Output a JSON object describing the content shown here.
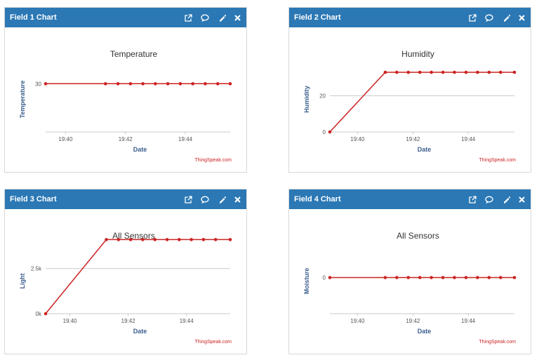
{
  "colors": {
    "header": "#2b78b5",
    "series": "#cc2222",
    "axis_label": "#3a5e8c",
    "credit": "#cc2222",
    "grid": "#cccccc"
  },
  "header_icons": [
    "external-link-icon",
    "comment-icon",
    "pencil-icon",
    "close-icon"
  ],
  "panels": [
    {
      "header_title": "Field 1 Chart",
      "chart_data": {
        "type": "line",
        "title": "Temperature",
        "xlabel": "Date",
        "ylabel": "Temperature",
        "credit": "ThingSpeak.com",
        "x_ticks": [
          "19:40",
          "19:42",
          "19:44"
        ],
        "y_ticks": [
          {
            "value": 30,
            "label": "30"
          }
        ],
        "xlim": [
          "19:39:20",
          "19:45:30"
        ],
        "ylim": [
          0,
          45
        ],
        "grid": true,
        "series": [
          {
            "x": [
              "19:39:20",
              "19:41:20",
              "19:41:45",
              "19:42:10",
              "19:42:35",
              "19:43:00",
              "19:43:25",
              "19:43:50",
              "19:44:15",
              "19:44:40",
              "19:45:05",
              "19:45:30"
            ],
            "y": [
              30,
              30,
              30,
              30,
              30,
              30,
              30,
              30,
              30,
              30,
              30,
              30
            ]
          }
        ]
      }
    },
    {
      "header_title": "Field 2 Chart",
      "chart_data": {
        "type": "line",
        "title": "Humidity",
        "xlabel": "Date",
        "ylabel": "Humidity",
        "credit": "ThingSpeak.com",
        "x_ticks": [
          "19:40",
          "19:42",
          "19:44"
        ],
        "y_ticks": [
          {
            "value": 0,
            "label": "0"
          },
          {
            "value": 20,
            "label": "20"
          }
        ],
        "xlim": [
          "19:39:00",
          "19:45:40"
        ],
        "ylim": [
          0,
          40
        ],
        "grid": true,
        "series": [
          {
            "x": [
              "19:39:00",
              "19:41:00",
              "19:41:25",
              "19:41:50",
              "19:42:15",
              "19:42:40",
              "19:43:05",
              "19:43:30",
              "19:43:55",
              "19:44:20",
              "19:44:45",
              "19:45:10",
              "19:45:40"
            ],
            "y": [
              0,
              33,
              33,
              33,
              33,
              33,
              33,
              33,
              33,
              33,
              33,
              33,
              33
            ]
          }
        ]
      }
    },
    {
      "header_title": "Field 3 Chart",
      "chart_data": {
        "type": "line",
        "title": "All Sensors",
        "xlabel": "Date",
        "ylabel": "Light",
        "credit": "ThingSpeak.com",
        "x_ticks": [
          "19:40",
          "19:42",
          "19:44"
        ],
        "y_ticks": [
          {
            "value": 0,
            "label": "0k"
          },
          {
            "value": 2500,
            "label": "2.5k"
          }
        ],
        "xlim": [
          "19:39:10",
          "19:45:30"
        ],
        "ylim": [
          0,
          4000
        ],
        "grid": true,
        "series": [
          {
            "x": [
              "19:39:10",
              "19:41:15",
              "19:41:40",
              "19:42:05",
              "19:42:30",
              "19:42:55",
              "19:43:20",
              "19:43:45",
              "19:44:10",
              "19:44:35",
              "19:45:00",
              "19:45:30"
            ],
            "y": [
              0,
              4100,
              4100,
              4100,
              4100,
              4100,
              4100,
              4100,
              4100,
              4100,
              4100,
              4100
            ]
          }
        ]
      }
    },
    {
      "header_title": "Field 4 Chart",
      "chart_data": {
        "type": "line",
        "title": "All Sensors",
        "xlabel": "Date",
        "ylabel": "Moisture",
        "credit": "ThingSpeak.com",
        "x_ticks": [
          "19:40",
          "19:42",
          "19:44"
        ],
        "y_ticks": [
          {
            "value": 0,
            "label": "0"
          }
        ],
        "xlim": [
          "19:39:00",
          "19:45:40"
        ],
        "ylim": [
          -5,
          5
        ],
        "grid": false,
        "series": [
          {
            "x": [
              "19:39:00",
              "19:41:00",
              "19:41:25",
              "19:41:50",
              "19:42:15",
              "19:42:40",
              "19:43:05",
              "19:43:30",
              "19:43:55",
              "19:44:20",
              "19:44:45",
              "19:45:10",
              "19:45:40"
            ],
            "y": [
              0,
              0,
              0,
              0,
              0,
              0,
              0,
              0,
              0,
              0,
              0,
              0,
              0
            ]
          }
        ]
      }
    }
  ]
}
